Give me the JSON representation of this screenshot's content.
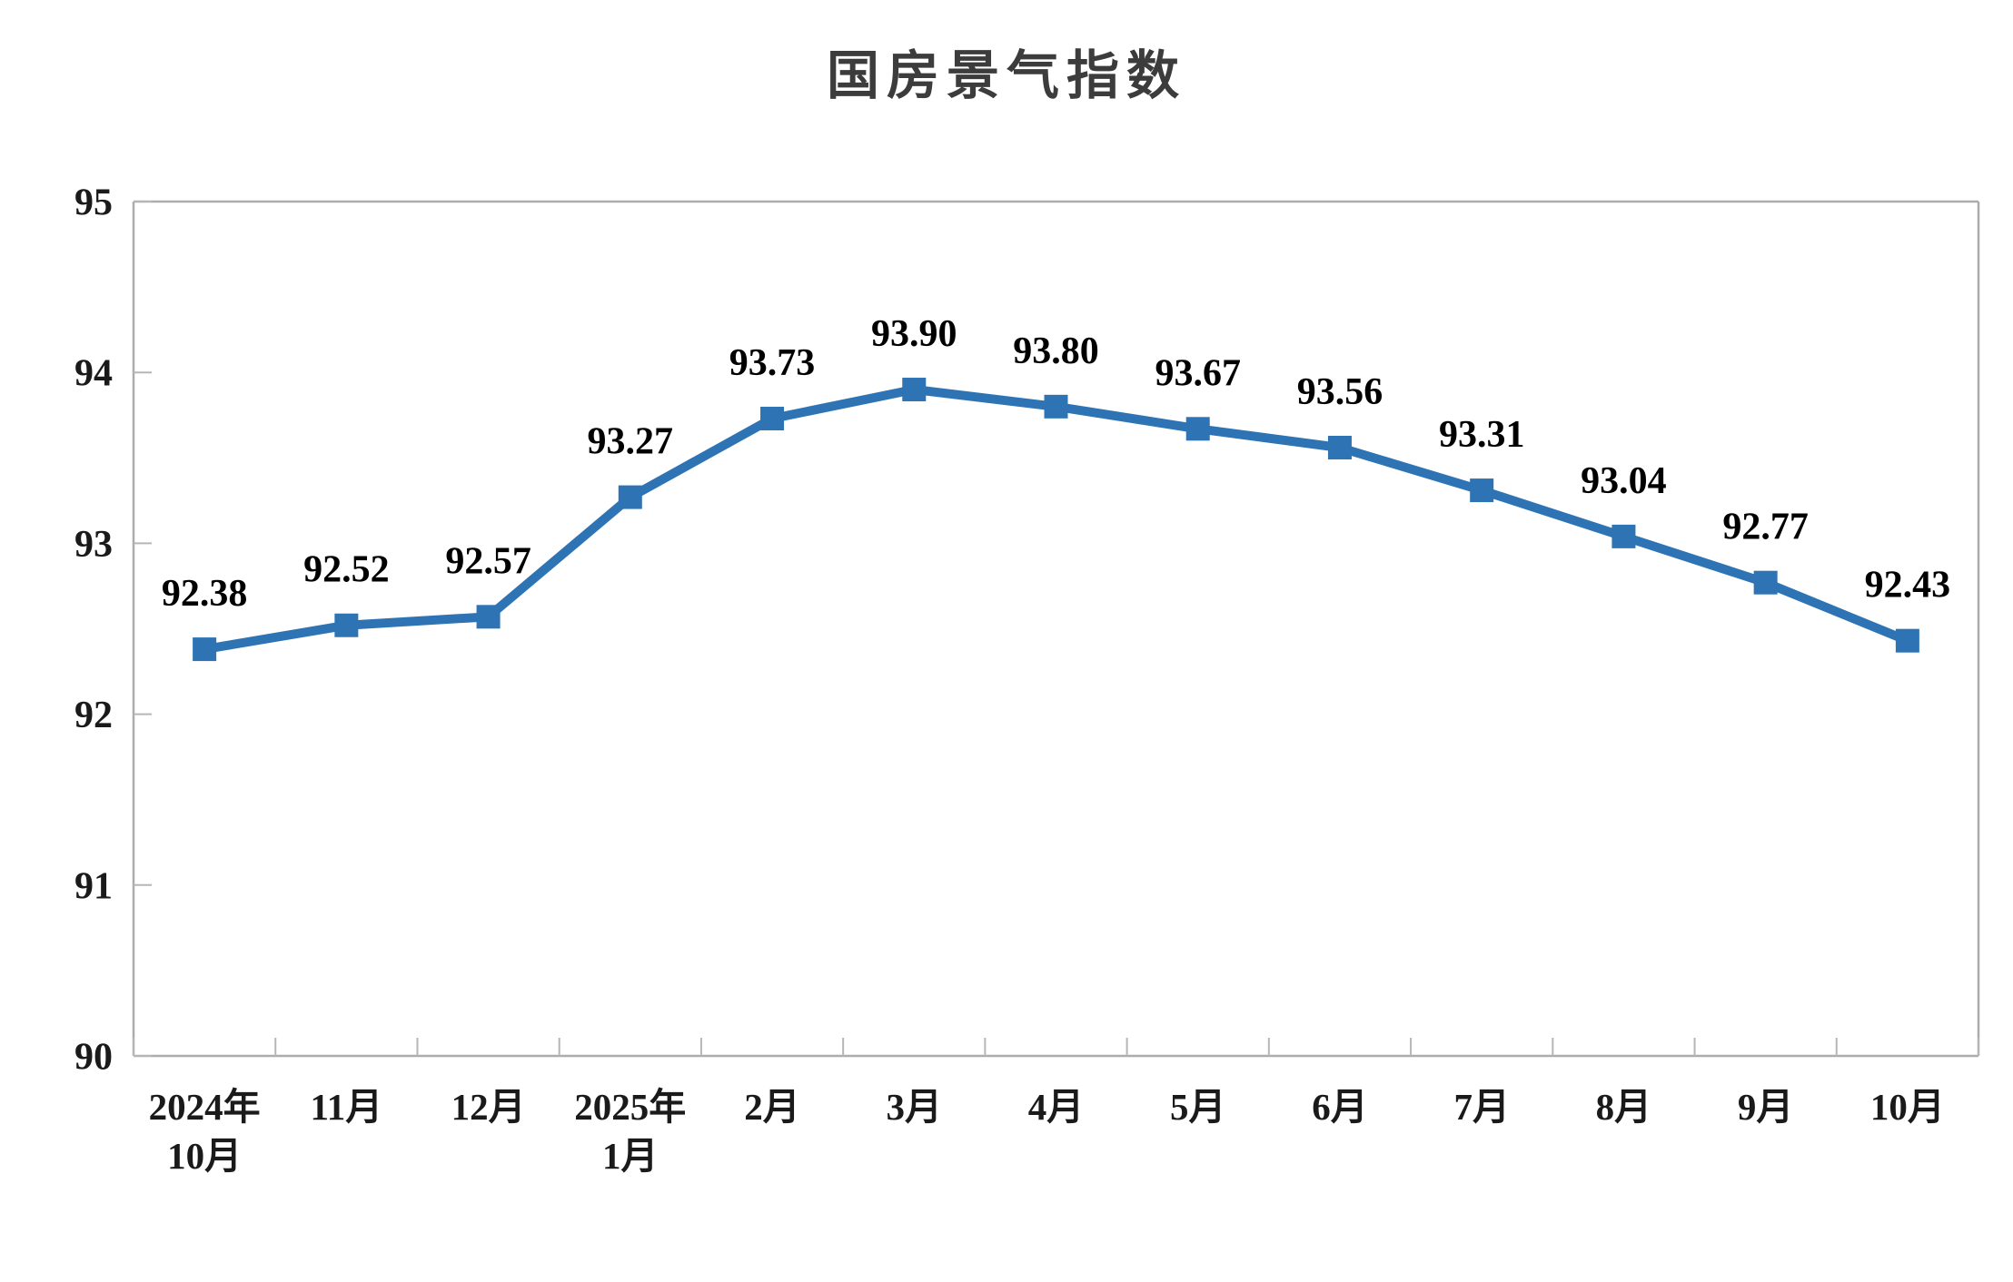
{
  "chart_data": {
    "type": "line",
    "title": "国房景气指数",
    "categories": [
      [
        "2024年",
        "10月"
      ],
      [
        "11月"
      ],
      [
        "12月"
      ],
      [
        "2025年",
        "1月"
      ],
      [
        "2月"
      ],
      [
        "3月"
      ],
      [
        "4月"
      ],
      [
        "5月"
      ],
      [
        "6月"
      ],
      [
        "7月"
      ],
      [
        "8月"
      ],
      [
        "9月"
      ],
      [
        "10月"
      ]
    ],
    "values": [
      92.38,
      92.52,
      92.57,
      93.27,
      93.73,
      93.9,
      93.8,
      93.67,
      93.56,
      93.31,
      93.04,
      92.77,
      92.43
    ],
    "data_labels": [
      "92.38",
      "92.52",
      "92.57",
      "93.27",
      "93.73",
      "93.90",
      "93.80",
      "93.67",
      "93.56",
      "93.31",
      "93.04",
      "92.77",
      "92.43"
    ],
    "ylim": [
      90,
      95
    ],
    "yticks": [
      "90",
      "91",
      "92",
      "93",
      "94",
      "95"
    ],
    "xlabel": "",
    "ylabel": "",
    "grid": false,
    "legend": "none",
    "marker": "square",
    "colors": {
      "line": "#2E74B5",
      "marker": "#2E74B5",
      "axis": "#ACACAC",
      "tick": "#B6B6B6",
      "axis_text": "#1a1a1a",
      "data_label_text": "#000000",
      "title_text": "#3c3c3c",
      "background": "#ffffff"
    }
  }
}
